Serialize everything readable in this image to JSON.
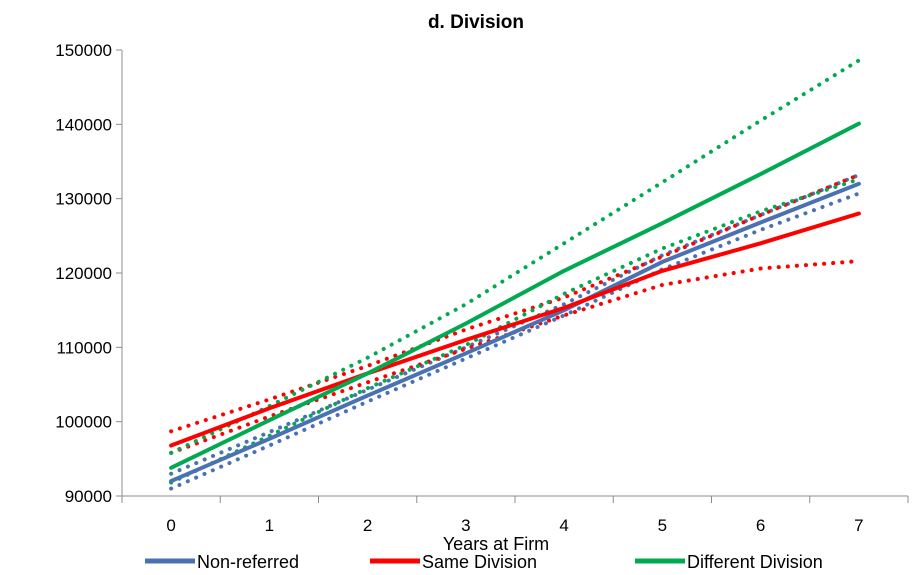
{
  "chart_data": {
    "type": "line",
    "title": "d. Division",
    "xlabel": "Years at Firm",
    "ylabel": "",
    "x": [
      0,
      1,
      2,
      3,
      4,
      5,
      6,
      7
    ],
    "xlim": [
      -0.5,
      7.5
    ],
    "ylim": [
      90000,
      150000
    ],
    "yticks": [
      90000,
      100000,
      110000,
      120000,
      130000,
      140000,
      150000
    ],
    "xticks": [
      0,
      1,
      2,
      3,
      4,
      5,
      6,
      7
    ],
    "legend_position": "bottom",
    "series": [
      {
        "name": "Non-referred",
        "color": "#4a72b2",
        "style": "solid",
        "values": [
          92000,
          97700,
          103500,
          109200,
          115000,
          121500,
          126800,
          132000
        ]
      },
      {
        "name": "",
        "color": "#4a72b2",
        "style": "dotted",
        "values": [
          91000,
          96800,
          102700,
          108500,
          114300,
          120500,
          125800,
          130700
        ]
      },
      {
        "name": "",
        "color": "#4a72b2",
        "style": "dotted",
        "values": [
          93000,
          98600,
          104300,
          110000,
          115800,
          122400,
          127800,
          133200
        ]
      },
      {
        "name": "Same Division",
        "color": "#ff0000",
        "style": "solid",
        "values": [
          96800,
          101800,
          106500,
          111000,
          115300,
          120300,
          124000,
          128000
        ]
      },
      {
        "name": "",
        "color": "#ff0000",
        "style": "dotted",
        "values": [
          95800,
          100700,
          105300,
          109800,
          114300,
          118400,
          120600,
          121600
        ]
      },
      {
        "name": "",
        "color": "#ff0000",
        "style": "dotted",
        "values": [
          98700,
          103000,
          107500,
          112400,
          116700,
          122200,
          127800,
          133200
        ]
      },
      {
        "name": "Different Division",
        "color": "#00aa50",
        "style": "solid",
        "values": [
          93800,
          100200,
          106500,
          113200,
          120300,
          126700,
          133300,
          140100
        ]
      },
      {
        "name": "",
        "color": "#00aa50",
        "style": "dotted",
        "values": [
          91800,
          98100,
          104500,
          110300,
          117200,
          123300,
          128300,
          132600
        ]
      },
      {
        "name": "",
        "color": "#00aa50",
        "style": "dotted",
        "values": [
          95800,
          102100,
          108600,
          115800,
          124000,
          132200,
          140500,
          148600
        ]
      }
    ]
  }
}
